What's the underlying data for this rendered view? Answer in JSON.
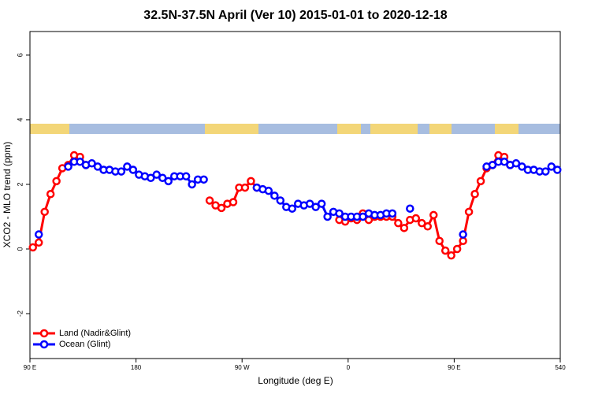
{
  "chart_data": {
    "type": "line",
    "title": "32.5N-37.5N April (Ver 10)   2015-01-01 to 2020-12-18",
    "x_label": "Longitude (deg E)",
    "y_label": "XCO2 - MLO trend (ppm)",
    "x": [
      92.5,
      97.5,
      102.5,
      107.5,
      112.5,
      117.5,
      122.5,
      127.5,
      132.5,
      137.5,
      142.5,
      147.5,
      152.5,
      157.5,
      162.5,
      167.5,
      172.5,
      177.5,
      182.5,
      187.5,
      192.5,
      197.5,
      202.5,
      207.5,
      212.5,
      217.5,
      222.5,
      227.5,
      232.5,
      237.5,
      242.5,
      247.5,
      252.5,
      257.5,
      262.5,
      267.5,
      272.5,
      277.5,
      282.5,
      287.5,
      292.5,
      297.5,
      302.5,
      307.5,
      312.5,
      317.5,
      322.5,
      327.5,
      332.5,
      337.5,
      342.5,
      347.5,
      352.5,
      357.5,
      362.5,
      367.5,
      372.5,
      377.5,
      382.5,
      387.5,
      392.5,
      397.5,
      402.5,
      407.5,
      412.5,
      417.5,
      422.5,
      427.5,
      432.5,
      437.5,
      442.5,
      447.5,
      452.5,
      457.5,
      462.5,
      467.5,
      472.5,
      477.5,
      482.5,
      487.5,
      492.5,
      497.5,
      502.5,
      507.5,
      512.5,
      517.5,
      522.5,
      527.5,
      532.5,
      537.5
    ],
    "series": [
      {
        "name": "Land (Nadir&Glint)",
        "color": "#ff0000",
        "values": [
          0.05,
          0.2,
          1.15,
          1.7,
          2.1,
          2.5,
          2.6,
          2.9,
          2.85,
          2.6,
          null,
          null,
          null,
          null,
          null,
          null,
          null,
          null,
          null,
          null,
          null,
          null,
          null,
          null,
          null,
          null,
          null,
          null,
          null,
          null,
          1.5,
          1.35,
          1.27,
          1.4,
          1.45,
          1.9,
          1.9,
          2.1,
          1.9,
          null,
          null,
          null,
          null,
          null,
          null,
          null,
          null,
          null,
          null,
          null,
          null,
          null,
          0.9,
          0.85,
          0.95,
          0.9,
          1.1,
          0.9,
          1.0,
          1.0,
          1.0,
          1.0,
          0.8,
          0.65,
          0.9,
          0.95,
          0.8,
          0.7,
          1.05,
          0.25,
          -0.05,
          -0.2,
          0.0,
          0.25,
          1.15,
          1.7,
          2.1,
          2.5,
          2.6,
          2.9,
          2.85,
          2.6,
          null,
          null,
          null,
          null,
          null,
          null,
          null,
          null
        ]
      },
      {
        "name": "Ocean (Glint)",
        "color": "#0000ff",
        "values": [
          null,
          0.45,
          null,
          null,
          null,
          null,
          2.55,
          2.7,
          2.7,
          2.6,
          2.65,
          2.55,
          2.45,
          2.45,
          2.4,
          2.4,
          2.55,
          2.45,
          2.3,
          2.25,
          2.2,
          2.3,
          2.2,
          2.1,
          2.25,
          2.25,
          2.25,
          2.0,
          2.15,
          2.15,
          null,
          null,
          null,
          null,
          null,
          null,
          null,
          null,
          1.9,
          1.85,
          1.8,
          1.65,
          1.5,
          1.3,
          1.25,
          1.4,
          1.35,
          1.4,
          1.3,
          1.4,
          1.0,
          1.15,
          1.1,
          1.0,
          1.0,
          1.0,
          1.0,
          1.1,
          1.05,
          1.05,
          1.1,
          1.1,
          null,
          null,
          1.25,
          null,
          null,
          null,
          null,
          null,
          null,
          null,
          null,
          0.45,
          null,
          null,
          null,
          2.55,
          2.6,
          2.7,
          2.7,
          2.6,
          2.65,
          2.55,
          2.45,
          2.45,
          2.4,
          2.4,
          2.55,
          2.45
        ]
      }
    ],
    "xlim": [
      90,
      540
    ],
    "xticks": [
      {
        "value": 90,
        "label": "90 E"
      },
      180,
      {
        "value": 270,
        "label": "90 W"
      },
      {
        "value": 360,
        "label": "0"
      },
      {
        "value": 450,
        "label": "90 E"
      },
      540
    ],
    "ylim": [
      -3.39,
      6.73
    ],
    "yticks": [
      -2,
      0,
      2,
      4,
      6
    ],
    "legend": "bottom-left"
  }
}
